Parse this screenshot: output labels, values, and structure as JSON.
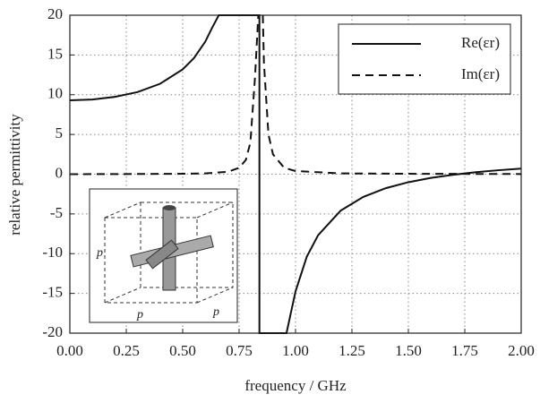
{
  "chart_data": {
    "type": "line",
    "xlabel": "frequency / GHz",
    "ylabel": "relative permittivity",
    "xlim": [
      0,
      2
    ],
    "ylim": [
      -20,
      20
    ],
    "xticks": [
      {
        "value": 0,
        "label": "0.00"
      },
      {
        "value": 0.25,
        "label": "0.25"
      },
      {
        "value": 0.5,
        "label": "0.50"
      },
      {
        "value": 0.75,
        "label": "0.75"
      },
      {
        "value": 1,
        "label": "1.00"
      },
      {
        "value": 1.25,
        "label": "1.25"
      },
      {
        "value": 1.5,
        "label": "1.50"
      },
      {
        "value": 1.75,
        "label": "1.75"
      },
      {
        "value": 2,
        "label": "2.00"
      }
    ],
    "yticks": [
      20,
      15,
      10,
      5,
      0,
      -5,
      -10,
      -15,
      -20
    ],
    "grid": true,
    "legend": "upper right",
    "series": [
      {
        "name": "Re(εr)",
        "color": "#111111",
        "dash": "none",
        "x": [
          0,
          0.1,
          0.2,
          0.3,
          0.4,
          0.5,
          0.55,
          0.6,
          0.63,
          0.66,
          0.84,
          0.84,
          0.96,
          1.0,
          1.05,
          1.1,
          1.2,
          1.3,
          1.4,
          1.5,
          1.6,
          1.7,
          1.8,
          1.9,
          2.0
        ],
        "values": [
          9.3,
          9.4,
          9.73,
          10.33,
          11.38,
          13.19,
          14.61,
          16.67,
          18.4,
          20,
          20,
          -20,
          -20,
          -14.75,
          -10.37,
          -7.68,
          -4.58,
          -2.86,
          -1.76,
          -1.01,
          -0.47,
          -0.07,
          0.25,
          0.5,
          0.7
        ]
      },
      {
        "name": "Im(εr)",
        "color": "#111111",
        "dash": "9,6",
        "x": [
          0,
          0.25,
          0.5,
          0.6,
          0.7,
          0.75,
          0.78,
          0.8,
          0.82,
          0.835,
          0.845,
          0.855,
          0.86,
          0.88,
          0.9,
          0.95,
          1.0,
          1.2,
          1.5,
          2.0
        ],
        "values": [
          0,
          0.02,
          0.05,
          0.1,
          0.3,
          0.8,
          1.8,
          4,
          12,
          20,
          null,
          20,
          14,
          5,
          2.5,
          0.8,
          0.4,
          0.1,
          0.05,
          0.02
        ]
      }
    ],
    "inset": {
      "labels": [
        "p",
        "p",
        "p"
      ]
    }
  }
}
